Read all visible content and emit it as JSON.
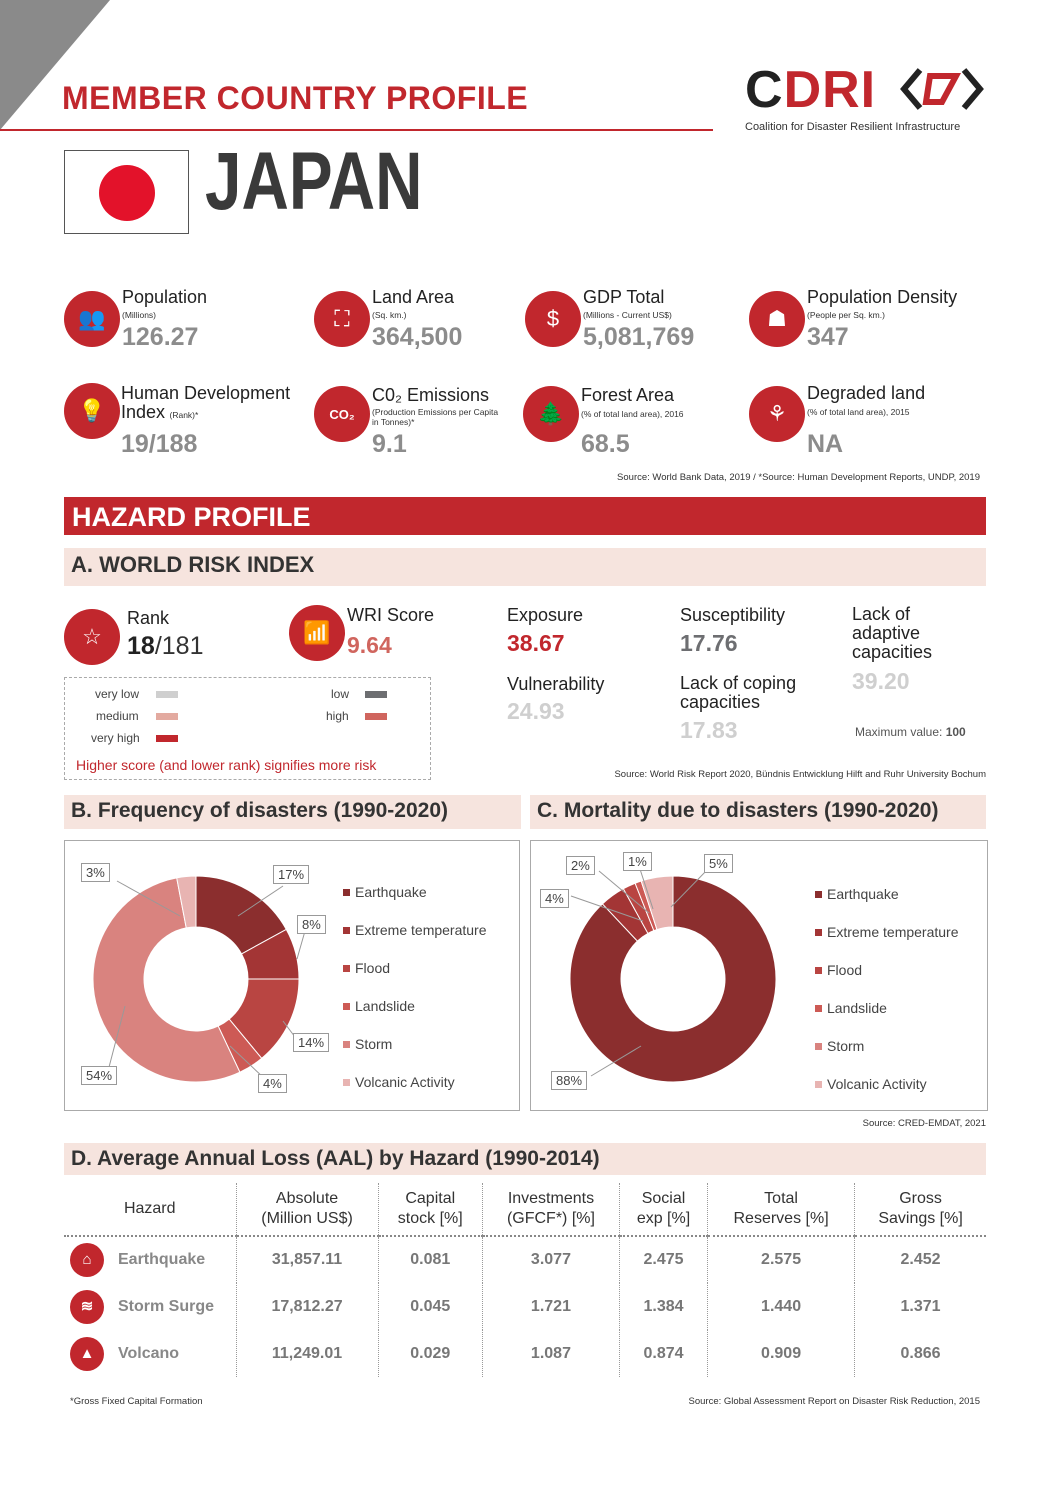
{
  "header": {
    "title": "MEMBER COUNTRY PROFILE",
    "logo_c": "C",
    "logo_dri": "DRI",
    "logo_subtitle": "Coalition for Disaster Resilient Infrastructure"
  },
  "country": {
    "name": "JAPAN"
  },
  "stats": [
    {
      "label": "Population",
      "sub": "(Millions)",
      "value": "126.27",
      "icon": "population-icon"
    },
    {
      "label": "Land Area",
      "sub": "(Sq. km.)",
      "value": "364,500",
      "icon": "land-area-icon"
    },
    {
      "label": "GDP Total",
      "sub": "(Millions - Current US$)",
      "value": "5,081,769",
      "icon": "gdp-icon"
    },
    {
      "label": "Population Density",
      "sub": "(People per Sq. km.)",
      "value": "347",
      "icon": "population-density-icon"
    },
    {
      "label": "Human Development",
      "label2": "Index",
      "sub": "(Rank)*",
      "value": "19/188",
      "icon": "lightbulb-icon"
    },
    {
      "label": "C0₂ Emissions",
      "sub": "(Production Emissions per Capita in Tonnes)*",
      "value": "9.1",
      "icon": "co2-cloud-icon"
    },
    {
      "label": "Forest Area",
      "sub": "(% of total land area), 2016",
      "value": "68.5",
      "icon": "forest-icon"
    },
    {
      "label": "Degraded land",
      "sub": "(% of total land area), 2015",
      "value": "NA",
      "icon": "degraded-land-icon"
    }
  ],
  "stats_source": "Source: World Bank Data, 2019 / *Source: Human Development Reports, UNDP, 2019",
  "hazard_title": "HAZARD PROFILE",
  "wri": {
    "title": "A. WORLD RISK INDEX",
    "rank_label": "Rank",
    "rank_value": "18",
    "rank_total": "/181",
    "score_label": "WRI Score",
    "score_value": "9.64",
    "exposure_label": "Exposure",
    "exposure_value": "38.67",
    "susceptibility_label": "Susceptibility",
    "susceptibility_value": "17.76",
    "lack_adaptive_label": "Lack of adaptive capacities",
    "lack_adaptive_value": "39.20",
    "vulnerability_label": "Vulnerability",
    "vulnerability_value": "24.93",
    "lack_coping_label": "Lack of coping capacities",
    "lack_coping_value": "17.83",
    "max_label": "Maximum value:",
    "max_value": "100",
    "legend": {
      "very_low": "very low",
      "low": "low",
      "medium": "medium",
      "high": "high",
      "very_high": "very high",
      "note": "Higher score (and lower rank) signifies more risk"
    },
    "colors": {
      "very_low": "#cfcfcf",
      "low": "#6d6e71",
      "medium": "#e3aaa0",
      "high": "#d0655e",
      "very_high": "#c1272d"
    },
    "source": "Source: World Risk Report 2020, Bündnis Entwicklung Hilft and Ruhr University Bochum"
  },
  "freq": {
    "title": "B.  Frequency of disasters (1990-2020)",
    "labels": [
      "17%",
      "8%",
      "14%",
      "4%",
      "54%",
      "3%"
    ]
  },
  "mort": {
    "title": "C.  Mortality due to disasters (1990-2020)",
    "labels": [
      "88%",
      "4%",
      "2%",
      "1%",
      "5%"
    ]
  },
  "legend_names": [
    "Earthquake",
    "Extreme temperature",
    "Flood",
    "Landslide",
    "Storm",
    "Volcanic Activity"
  ],
  "disaster_source": "Source: CRED-EMDAT, 2021",
  "chart_data": [
    {
      "type": "pie",
      "title": "B.  Frequency of disasters (1990-2020)",
      "categories": [
        "Earthquake",
        "Extreme temperature",
        "Flood",
        "Landslide",
        "Storm",
        "Volcanic Activity"
      ],
      "values": [
        17,
        8,
        14,
        4,
        54,
        3
      ],
      "colors": [
        "#8b2e2e",
        "#a33535",
        "#b94542",
        "#cd5a55",
        "#d9837f",
        "#e8b4b2"
      ],
      "donut": true
    },
    {
      "type": "pie",
      "title": "C.  Mortality due to disasters (1990-2020)",
      "categories": [
        "Earthquake",
        "Extreme temperature",
        "Flood",
        "Landslide",
        "Storm",
        "Volcanic Activity"
      ],
      "values": [
        88,
        4,
        2,
        1,
        0,
        5
      ],
      "colors": [
        "#8b2e2e",
        "#a33535",
        "#b94542",
        "#cd5a55",
        "#d9837f",
        "#e8b4b2"
      ],
      "donut": true
    }
  ],
  "aal": {
    "title": "D.  Average Annual Loss (AAL) by Hazard (1990-2014)",
    "headers": [
      [
        "Hazard",
        ""
      ],
      [
        "Absolute",
        "(Million US$)"
      ],
      [
        "Capital",
        "stock [%]"
      ],
      [
        "Investments",
        "(GFCF*) [%]"
      ],
      [
        "Social",
        "exp [%]"
      ],
      [
        "Total",
        "Reserves [%]"
      ],
      [
        "Gross",
        "Savings [%]"
      ]
    ],
    "rows": [
      {
        "icon": "earthquake-icon",
        "cells": [
          "Earthquake",
          "31,857.11",
          "0.081",
          "3.077",
          "2.475",
          "2.575",
          "2.452"
        ]
      },
      {
        "icon": "storm-surge-icon",
        "cells": [
          "Storm Surge",
          "17,812.27",
          "0.045",
          "1.721",
          "1.384",
          "1.440",
          "1.371"
        ]
      },
      {
        "icon": "volcano-icon",
        "cells": [
          "Volcano",
          "11,249.01",
          "0.029",
          "1.087",
          "0.874",
          "0.909",
          "0.866"
        ]
      }
    ],
    "footnote": "*Gross Fixed Capital Formation",
    "source": "Source: Global Assessment Report on Disaster Risk Reduction, 2015"
  }
}
